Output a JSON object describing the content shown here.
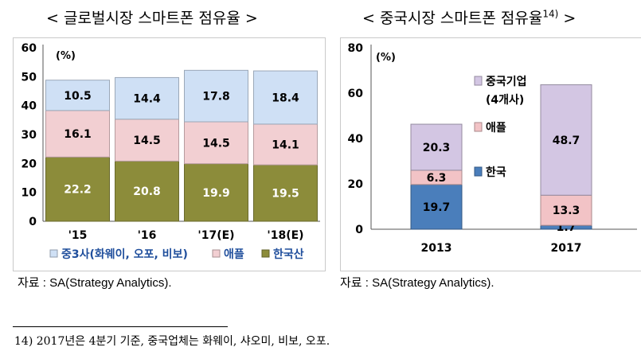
{
  "left": {
    "title": "< 글로벌시장 스마트폰 점유율 >",
    "source": "자료 : SA(Strategy Analytics).",
    "chart_data": {
      "type": "bar",
      "stacked": true,
      "unit_label": "(%)",
      "categories": [
        "'15",
        "'16",
        "'17(E)",
        "'18(E)"
      ],
      "ylim": [
        0,
        60
      ],
      "yticks": [
        0,
        10,
        20,
        30,
        40,
        50,
        60
      ],
      "series": [
        {
          "name": "한국산",
          "values": [
            22.2,
            20.8,
            19.9,
            19.5
          ],
          "color": "#8c8c3a"
        },
        {
          "name": "애플",
          "values": [
            16.1,
            14.5,
            14.5,
            14.1
          ],
          "color": "#f2cfd2"
        },
        {
          "name": "중3사(화웨이, 오포, 비보)",
          "values": [
            10.5,
            14.4,
            17.8,
            18.4
          ],
          "color": "#cfe0f5"
        }
      ],
      "legend": [
        "중3사(화웨이, 오포, 비보)",
        "애플",
        "한국산"
      ],
      "legend_position": "bottom"
    }
  },
  "right": {
    "title": "< 중국시장 스마트폰 점유율",
    "title_sup": "14)",
    "title_end": " >",
    "source": "자료 : SA(Strategy Analytics).",
    "chart_data": {
      "type": "bar",
      "stacked": true,
      "unit_label": "(%)",
      "categories": [
        "2013",
        "2017"
      ],
      "ylim": [
        0,
        80
      ],
      "yticks": [
        0,
        20,
        40,
        60,
        80
      ],
      "series": [
        {
          "name": "한국",
          "values": [
            19.7,
            1.7
          ],
          "color": "#4a7ebb"
        },
        {
          "name": "애플",
          "values": [
            6.3,
            13.3
          ],
          "color": "#f2c3c6"
        },
        {
          "name": "중국기업 (4개사)",
          "values": [
            20.3,
            48.7
          ],
          "color": "#d3c6e3"
        }
      ],
      "legend": [
        {
          "label": "중국기업",
          "sub": "(4개사)"
        },
        {
          "label": "애플"
        },
        {
          "label": "한국"
        }
      ],
      "legend_position": "inside-middle"
    }
  },
  "footnote": "14) 2017년은 4분기 기준, 중국업체는 화웨이, 샤오미, 비보, 오포."
}
